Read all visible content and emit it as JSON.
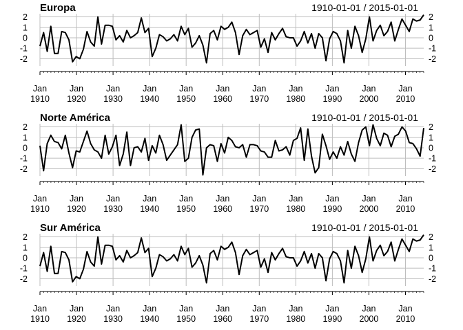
{
  "colors": {
    "line": "#000000",
    "grid": "#bdbdbd",
    "axis": "#000000"
  },
  "chart_data": [
    {
      "type": "line",
      "title": "Europa",
      "date_range_label": "1910-01-01 / 2015-01-01",
      "x_start_year": 1910,
      "x_end_year": 2015,
      "ylim": [
        -2.7,
        2.3
      ],
      "y_ticks": [
        -2,
        -1,
        0,
        1,
        2
      ],
      "x_ticks": [
        {
          "year": 1910,
          "label_top": "Jan",
          "label_bottom": "1910"
        },
        {
          "year": 1920,
          "label_top": "Jan",
          "label_bottom": "1920"
        },
        {
          "year": 1930,
          "label_top": "Jan",
          "label_bottom": "1930"
        },
        {
          "year": 1940,
          "label_top": "Jan",
          "label_bottom": "1940"
        },
        {
          "year": 1950,
          "label_top": "Jan",
          "label_bottom": "1950"
        },
        {
          "year": 1960,
          "label_top": "Jan",
          "label_bottom": "1960"
        },
        {
          "year": 1970,
          "label_top": "Jan",
          "label_bottom": "1970"
        },
        {
          "year": 1980,
          "label_top": "Jan",
          "label_bottom": "1980"
        },
        {
          "year": 1990,
          "label_top": "Jan",
          "label_bottom": "1990"
        },
        {
          "year": 2000,
          "label_top": "Jan",
          "label_bottom": "2000"
        },
        {
          "year": 2010,
          "label_top": "Jan",
          "label_bottom": "2010"
        }
      ],
      "values": [
        -0.8,
        0.5,
        -1.3,
        1.1,
        -1.5,
        -1.5,
        0.6,
        0.5,
        -0.2,
        -2.3,
        -1.8,
        -2.0,
        -1.1,
        0.6,
        -0.4,
        -0.8,
        2.0,
        -0.6,
        1.2,
        1.2,
        1.1,
        -0.2,
        0.2,
        -0.4,
        0.7,
        0.0,
        0.2,
        0.5,
        1.9,
        0.5,
        0.9,
        -1.8,
        -1.0,
        0.3,
        0.1,
        -0.3,
        -0.1,
        0.3,
        -0.3,
        1.1,
        0.3,
        0.9,
        -0.9,
        -0.5,
        0.2,
        -0.7,
        -2.4,
        0.4,
        0.7,
        -0.2,
        1.1,
        0.8,
        1.0,
        1.5,
        0.5,
        -1.6,
        0.2,
        0.8,
        0.3,
        0.5,
        0.7,
        -0.9,
        -0.1,
        -1.4,
        0.5,
        -0.2,
        0.4,
        0.9,
        0.1,
        0.0,
        0.0,
        -0.8,
        -0.3,
        0.6,
        -0.5,
        0.4,
        -1.0,
        0.4,
        0.0,
        -2.2,
        -0.1,
        0.6,
        0.4,
        -0.3,
        -2.4,
        0.7,
        -1.0,
        1.1,
        0.2,
        -1.4,
        -0.1,
        2.0,
        -0.3,
        0.7,
        1.2,
        0.2,
        0.6,
        1.5,
        -0.3,
        0.8,
        1.8,
        1.2,
        0.6,
        1.8,
        1.6,
        1.7,
        2.2
      ]
    },
    {
      "type": "line",
      "title": "Norte América",
      "date_range_label": "1910-01-01 / 2015-01-01",
      "x_start_year": 1910,
      "x_end_year": 2015,
      "ylim": [
        -2.7,
        2.3
      ],
      "y_ticks": [
        -2,
        -1,
        0,
        1,
        2
      ],
      "x_ticks": [
        {
          "year": 1910,
          "label_top": "Jan",
          "label_bottom": "1910"
        },
        {
          "year": 1920,
          "label_top": "Jan",
          "label_bottom": "1920"
        },
        {
          "year": 1930,
          "label_top": "Jan",
          "label_bottom": "1930"
        },
        {
          "year": 1940,
          "label_top": "Jan",
          "label_bottom": "1940"
        },
        {
          "year": 1950,
          "label_top": "Jan",
          "label_bottom": "1950"
        },
        {
          "year": 1960,
          "label_top": "Jan",
          "label_bottom": "1960"
        },
        {
          "year": 1970,
          "label_top": "Jan",
          "label_bottom": "1970"
        },
        {
          "year": 1980,
          "label_top": "Jan",
          "label_bottom": "1980"
        },
        {
          "year": 1990,
          "label_top": "Jan",
          "label_bottom": "1990"
        },
        {
          "year": 2000,
          "label_top": "Jan",
          "label_bottom": "2000"
        },
        {
          "year": 2010,
          "label_top": "Jan",
          "label_bottom": "2010"
        }
      ],
      "values": [
        0.2,
        -2.2,
        0.4,
        1.2,
        0.6,
        0.5,
        -0.1,
        1.2,
        -0.5,
        -1.9,
        -0.3,
        -0.4,
        0.6,
        1.6,
        0.4,
        -0.2,
        -0.4,
        -1.0,
        1.2,
        -0.6,
        0.1,
        1.2,
        -1.7,
        -0.6,
        1.5,
        -1.7,
        0.0,
        0.1,
        -0.4,
        0.9,
        -1.2,
        0.2,
        -0.5,
        1.2,
        0.3,
        -1.2,
        -0.7,
        -0.2,
        0.3,
        2.2,
        -1.3,
        -1.0,
        1.0,
        1.7,
        1.8,
        -2.6,
        0.0,
        0.3,
        0.2,
        -1.3,
        0.4,
        -0.5,
        1.0,
        0.7,
        0.1,
        0.0,
        0.3,
        -0.9,
        0.3,
        0.3,
        0.2,
        -0.3,
        -0.4,
        -0.9,
        -0.9,
        0.7,
        -0.3,
        -0.2,
        0.1,
        -0.7,
        0.7,
        0.9,
        1.9,
        -1.2,
        1.8,
        -0.8,
        -2.4,
        -1.9,
        1.3,
        0.2,
        -1.1,
        -0.4,
        -1.0,
        0.1,
        -0.7,
        0.6,
        -0.6,
        -1.3,
        0.5,
        1.7,
        2.0,
        0.2,
        2.2,
        0.9,
        0.2,
        1.4,
        1.2,
        0.1,
        1.1,
        1.3,
        2.0,
        1.6,
        0.5,
        0.4,
        -0.1,
        -0.8,
        1.9
      ]
    },
    {
      "type": "line",
      "title": "Sur América",
      "date_range_label": "1910-01-01 / 2015-01-01",
      "x_start_year": 1910,
      "x_end_year": 2015,
      "ylim": [
        -2.7,
        2.3
      ],
      "y_ticks": [
        -2,
        -1,
        0,
        1,
        2
      ],
      "x_ticks": [
        {
          "year": 1910,
          "label_top": "Jan",
          "label_bottom": "1910"
        },
        {
          "year": 1920,
          "label_top": "Jan",
          "label_bottom": "1920"
        },
        {
          "year": 1930,
          "label_top": "Jan",
          "label_bottom": "1930"
        },
        {
          "year": 1940,
          "label_top": "Jan",
          "label_bottom": "1940"
        },
        {
          "year": 1950,
          "label_top": "Jan",
          "label_bottom": "1950"
        },
        {
          "year": 1960,
          "label_top": "Jan",
          "label_bottom": "1960"
        },
        {
          "year": 1970,
          "label_top": "Jan",
          "label_bottom": "1970"
        },
        {
          "year": 1980,
          "label_top": "Jan",
          "label_bottom": "1980"
        },
        {
          "year": 1990,
          "label_top": "Jan",
          "label_bottom": "1990"
        },
        {
          "year": 2000,
          "label_top": "Jan",
          "label_bottom": "2000"
        },
        {
          "year": 2010,
          "label_top": "Jan",
          "label_bottom": "2010"
        }
      ],
      "values": [
        -0.8,
        0.5,
        -1.3,
        1.1,
        -1.5,
        -1.5,
        0.6,
        0.5,
        -0.2,
        -2.3,
        -1.8,
        -2.0,
        -1.1,
        0.6,
        -0.4,
        -0.8,
        2.0,
        -0.6,
        1.2,
        1.2,
        1.1,
        -0.2,
        0.2,
        -0.4,
        0.7,
        0.0,
        0.2,
        0.5,
        1.9,
        0.5,
        0.9,
        -1.8,
        -1.0,
        0.3,
        0.1,
        -0.3,
        -0.1,
        0.3,
        -0.3,
        1.1,
        0.3,
        0.9,
        -0.9,
        -0.5,
        0.2,
        -0.7,
        -2.4,
        0.4,
        0.7,
        -0.2,
        1.1,
        0.8,
        1.0,
        1.5,
        0.5,
        -1.6,
        0.2,
        0.8,
        0.3,
        0.5,
        0.7,
        -0.9,
        -0.1,
        -1.4,
        0.5,
        -0.2,
        0.4,
        0.9,
        0.1,
        0.0,
        0.0,
        -0.8,
        -0.3,
        0.6,
        -0.5,
        0.4,
        -1.0,
        0.4,
        0.0,
        -2.2,
        -0.1,
        0.6,
        0.4,
        -0.3,
        -2.4,
        0.7,
        -1.0,
        1.1,
        0.2,
        -1.4,
        -0.1,
        2.0,
        -0.3,
        0.7,
        1.2,
        0.2,
        0.6,
        1.5,
        -0.3,
        0.8,
        1.8,
        1.2,
        0.6,
        1.8,
        1.6,
        1.7,
        2.2
      ]
    }
  ]
}
